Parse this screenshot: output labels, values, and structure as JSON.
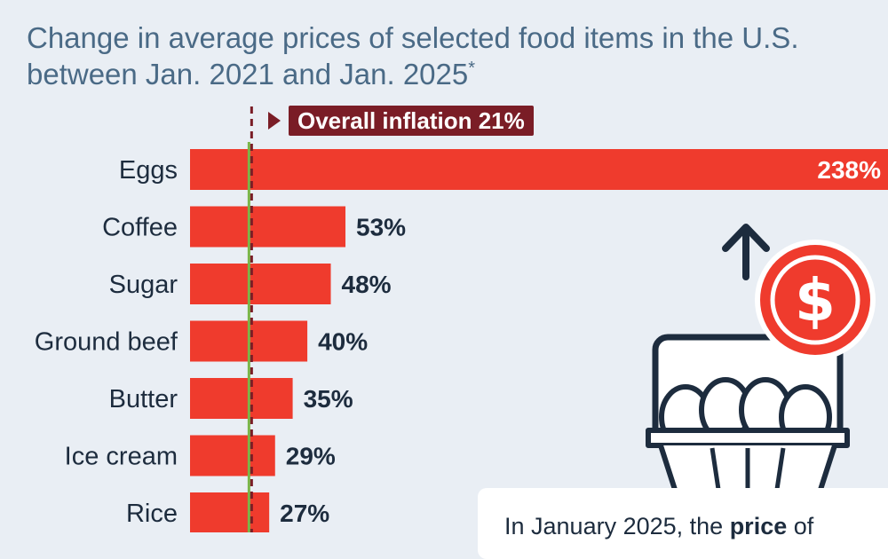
{
  "title": "Change in average prices of selected food items in the U.S. between Jan. 2021 and Jan. 2025",
  "title_marker": "*",
  "reference": {
    "label": "Overall inflation 21%",
    "value": 21
  },
  "callout": {
    "lead": "In January 2025, the ",
    "strong": "price",
    "tail": " of"
  },
  "illustration": {
    "icons": [
      "up-arrow-icon",
      "dollar-coin-icon",
      "egg-carton-icon"
    ]
  },
  "colors": {
    "bar": "#ef3b2d",
    "reference": "#7a1d26",
    "text": "#1d2c3e",
    "title": "#4a6a86",
    "green_line": "#7ab648"
  },
  "chart_data": {
    "type": "bar",
    "orientation": "horizontal",
    "categories": [
      "Eggs",
      "Coffee",
      "Sugar",
      "Ground beef",
      "Butter",
      "Ice cream",
      "Rice"
    ],
    "values": [
      238,
      53,
      48,
      40,
      35,
      29,
      27
    ],
    "value_labels": [
      "238%",
      "53%",
      "48%",
      "40%",
      "35%",
      "29%",
      "27%"
    ],
    "unit": "%",
    "xlim": [
      0,
      238
    ],
    "grid": false
  }
}
